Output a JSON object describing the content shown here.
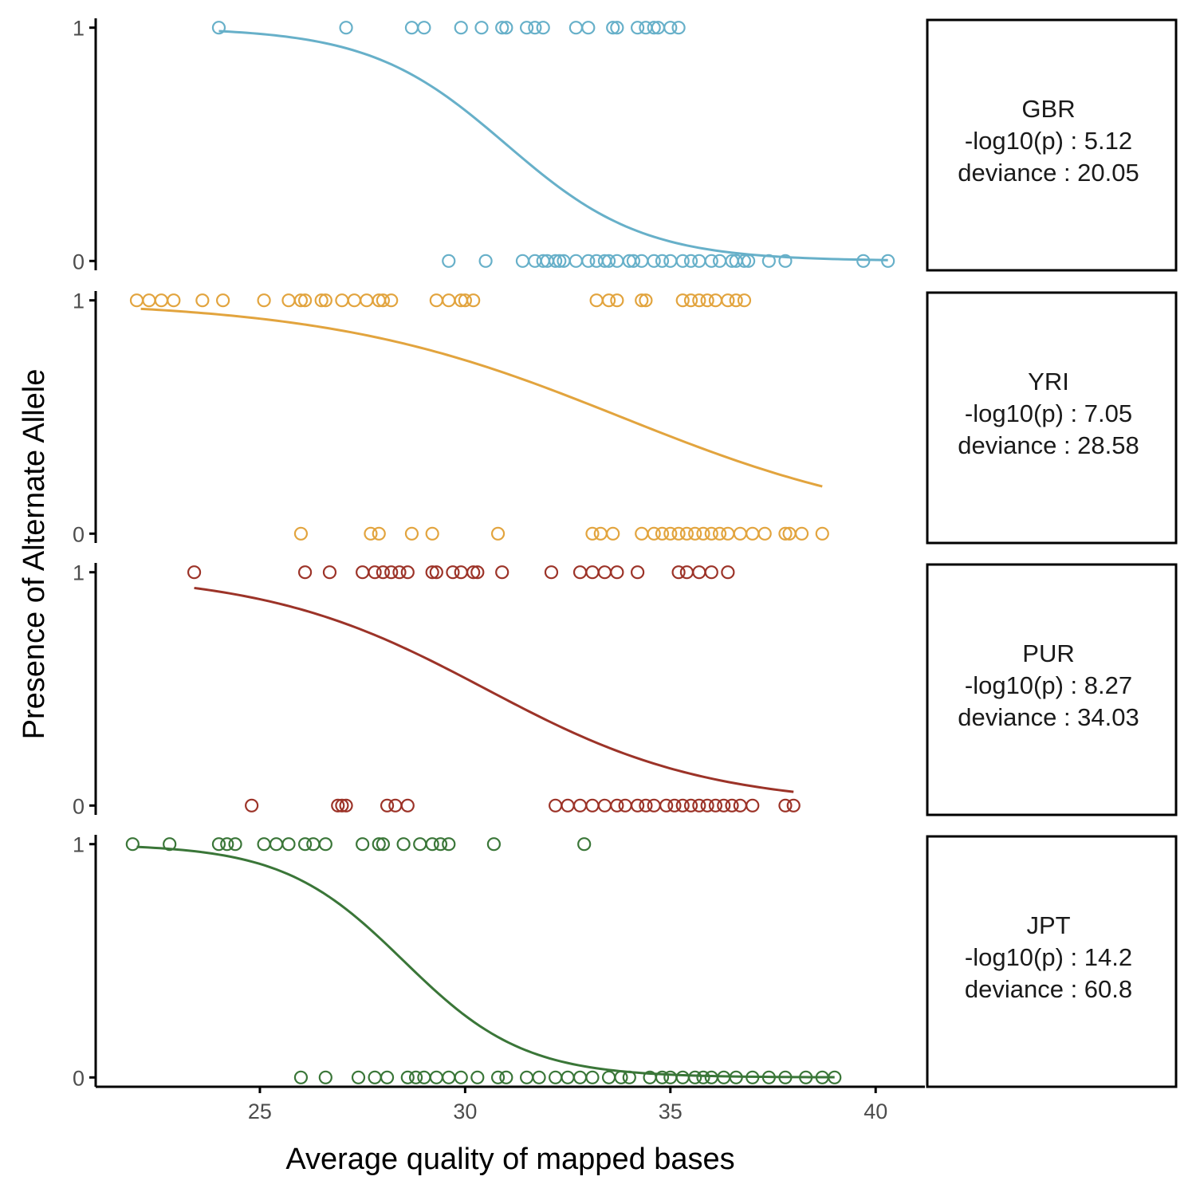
{
  "chart_data": {
    "type": "scatter",
    "xlabel": "Average quality of mapped bases",
    "ylabel": "Presence of Alternate Allele",
    "xlim": [
      21,
      41.2
    ],
    "ylim": [
      -0.04,
      1.04
    ],
    "x_ticks": [
      "25",
      "30",
      "35",
      "40"
    ],
    "y_ticks": [
      "0",
      "1"
    ],
    "grid": false,
    "fit": "logistic",
    "panels": [
      {
        "strip": [
          "GBR",
          "-log10(p) : 5.12",
          "deviance : 20.05"
        ],
        "color": "#67b0c9",
        "curve": {
          "x0": 31.0,
          "k": 0.6,
          "xmin": 24.0,
          "xmax": 40.3
        },
        "points_y1": [
          24.0,
          27.1,
          28.7,
          29.0,
          29.9,
          30.4,
          30.9,
          31.0,
          31.5,
          31.7,
          31.9,
          32.7,
          33.0,
          33.6,
          33.7,
          34.2,
          34.4,
          34.6,
          34.7,
          35.0,
          35.2
        ],
        "points_y0": [
          29.6,
          30.5,
          31.4,
          31.7,
          31.9,
          32.0,
          32.2,
          32.3,
          32.4,
          32.7,
          33.0,
          33.2,
          33.4,
          33.5,
          33.7,
          34.0,
          34.1,
          34.3,
          34.6,
          34.8,
          35.0,
          35.3,
          35.5,
          35.7,
          36.0,
          36.2,
          36.5,
          36.6,
          36.8,
          36.9,
          37.4,
          37.8,
          39.7,
          40.3
        ]
      },
      {
        "strip": [
          "YRI",
          "-log10(p) : 7.05",
          "deviance : 28.58"
        ],
        "color": "#e2a43e",
        "curve": {
          "x0": 33.8,
          "k": 0.28,
          "xmin": 22.1,
          "xmax": 38.7
        },
        "points_y1": [
          22.0,
          22.3,
          22.6,
          22.9,
          23.6,
          24.1,
          25.1,
          25.7,
          26.0,
          26.1,
          26.5,
          26.6,
          27.0,
          27.3,
          27.6,
          27.9,
          28.0,
          28.2,
          29.3,
          29.6,
          29.9,
          30.0,
          30.2,
          33.2,
          33.5,
          33.7,
          34.3,
          34.4,
          35.3,
          35.5,
          35.7,
          35.9,
          36.1,
          36.4,
          36.6,
          36.8
        ],
        "points_y0": [
          26.0,
          27.7,
          27.9,
          28.7,
          29.2,
          30.8,
          33.1,
          33.3,
          33.6,
          34.3,
          34.6,
          34.8,
          35.0,
          35.2,
          35.4,
          35.6,
          35.8,
          36.0,
          36.2,
          36.4,
          36.7,
          37.0,
          37.3,
          37.8,
          37.9,
          38.2,
          38.7
        ]
      },
      {
        "strip": [
          "PUR",
          "-log10(p) : 8.27",
          "deviance : 34.03"
        ],
        "color": "#9c3328",
        "curve": {
          "x0": 30.5,
          "k": 0.37,
          "xmin": 23.4,
          "xmax": 38.0
        },
        "points_y1": [
          23.4,
          26.1,
          26.7,
          27.5,
          27.8,
          28.0,
          28.2,
          28.4,
          28.6,
          29.2,
          29.3,
          29.7,
          29.9,
          30.2,
          30.3,
          30.9,
          32.1,
          32.8,
          33.1,
          33.4,
          33.7,
          34.2,
          35.2,
          35.4,
          35.7,
          36.0,
          36.4
        ],
        "points_y0": [
          24.8,
          26.9,
          27.0,
          27.1,
          28.1,
          28.3,
          28.6,
          32.2,
          32.5,
          32.8,
          33.1,
          33.4,
          33.7,
          33.9,
          34.2,
          34.4,
          34.6,
          34.9,
          35.1,
          35.3,
          35.5,
          35.7,
          35.9,
          36.1,
          36.3,
          36.5,
          36.7,
          37.0,
          37.8,
          38.0
        ]
      },
      {
        "strip": [
          "JPT",
          "-log10(p) : 14.2",
          "deviance : 60.8"
        ],
        "color": "#3a7638",
        "curve": {
          "x0": 28.5,
          "k": 0.68,
          "xmin": 22.0,
          "xmax": 39.0
        },
        "points_y1": [
          21.9,
          22.8,
          24.0,
          24.2,
          24.4,
          25.1,
          25.4,
          25.7,
          26.1,
          26.3,
          26.6,
          27.5,
          27.9,
          28.0,
          28.5,
          28.9,
          29.2,
          29.4,
          29.6,
          30.7,
          32.9
        ],
        "points_y0": [
          26.0,
          26.6,
          27.4,
          27.8,
          28.1,
          28.6,
          28.8,
          29.0,
          29.3,
          29.6,
          29.9,
          30.3,
          30.8,
          31.0,
          31.5,
          31.8,
          32.2,
          32.5,
          32.8,
          33.1,
          33.5,
          33.8,
          34.0,
          34.5,
          34.8,
          35.0,
          35.3,
          35.6,
          35.8,
          36.0,
          36.3,
          36.6,
          37.0,
          37.4,
          37.8,
          38.3,
          38.7,
          39.0
        ]
      }
    ]
  }
}
